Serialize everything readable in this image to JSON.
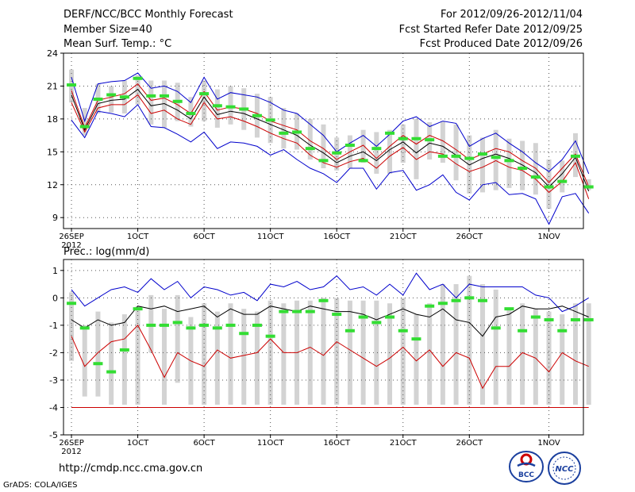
{
  "header": {
    "title": "DERF/NCC/BCC Monthly Forecast",
    "member": "Member Size=40",
    "variable": "Mean Surf. Temp.: °C",
    "period": "For 2012/09/26-2012/11/04",
    "started": "Fcst Started Refer Date 2012/09/25",
    "produced": "Fcst Produced Date 2012/09/26"
  },
  "footer": {
    "url": "http://cmdp.ncc.cma.gov.cn",
    "credit": "GrADS: COLA/IGES",
    "logo_bcc": "BCC",
    "logo_ncc": "NCC"
  },
  "colors": {
    "envelope": "#0000cc",
    "mean": "#000000",
    "spread": "#cc0000",
    "box": "#d3d3d3",
    "climatology": "#33dd33"
  },
  "chart_data": [
    {
      "type": "line",
      "title": "Mean Surf. Temp.: °C",
      "ylim": [
        8,
        24
      ],
      "yticks": [
        9,
        12,
        15,
        18,
        21,
        24
      ],
      "x": [
        0,
        1,
        2,
        3,
        4,
        5,
        6,
        7,
        8,
        9,
        10,
        11,
        12,
        13,
        14,
        15,
        16,
        17,
        18,
        19,
        20,
        21,
        22,
        23,
        24,
        25,
        26,
        27,
        28,
        29,
        30,
        31,
        32,
        33,
        34,
        35,
        36,
        37,
        38,
        39
      ],
      "xtick_labels": [
        {
          "day": 0,
          "label": "26SEP",
          "sub": "2012"
        },
        {
          "day": 5,
          "label": "1OCT",
          "sub": ""
        },
        {
          "day": 10,
          "label": "6OCT",
          "sub": ""
        },
        {
          "day": 15,
          "label": "11OCT",
          "sub": ""
        },
        {
          "day": 20,
          "label": "16OCT",
          "sub": ""
        },
        {
          "day": 25,
          "label": "21OCT",
          "sub": ""
        },
        {
          "day": 30,
          "label": "26OCT",
          "sub": ""
        },
        {
          "day": 36,
          "label": "1NOV",
          "sub": ""
        }
      ],
      "series": [
        {
          "name": "max",
          "values": [
            21.8,
            17.8,
            21.2,
            21.4,
            21.5,
            22.2,
            20.8,
            21.0,
            20.5,
            19.5,
            21.8,
            19.8,
            20.4,
            20.2,
            20.0,
            19.5,
            18.8,
            18.5,
            17.5,
            16.5,
            15.0,
            15.8,
            16.5,
            15.5,
            16.6,
            17.8,
            18.2,
            17.3,
            17.8,
            17.6,
            15.5,
            16.2,
            16.7,
            15.8,
            15.0,
            14.0,
            13.2,
            14.3,
            16.0,
            13.0
          ]
        },
        {
          "name": "upper",
          "values": [
            20.6,
            17.2,
            19.7,
            20.0,
            20.3,
            21.2,
            19.7,
            19.9,
            19.3,
            18.5,
            20.5,
            18.8,
            19.1,
            18.9,
            18.5,
            17.8,
            17.4,
            17.0,
            16.0,
            15.3,
            14.3,
            15.0,
            15.6,
            14.4,
            15.5,
            16.5,
            15.7,
            16.5,
            16.0,
            15.2,
            14.3,
            14.8,
            15.3,
            15.0,
            14.2,
            13.5,
            12.2,
            13.5,
            14.8,
            11.8
          ]
        },
        {
          "name": "mean",
          "values": [
            20.2,
            17.0,
            19.4,
            19.7,
            19.8,
            20.7,
            19.2,
            19.4,
            18.8,
            18.0,
            20.0,
            18.4,
            18.7,
            18.5,
            18.0,
            17.5,
            17.0,
            16.5,
            15.6,
            14.9,
            14.0,
            14.6,
            15.0,
            14.2,
            15.2,
            15.9,
            14.9,
            15.8,
            15.5,
            14.7,
            13.8,
            14.4,
            14.8,
            14.4,
            13.8,
            13.1,
            11.8,
            13.0,
            14.5,
            11.4
          ]
        },
        {
          "name": "lower",
          "values": [
            19.5,
            16.8,
            19.0,
            19.3,
            19.3,
            20.2,
            18.5,
            18.8,
            18.0,
            17.5,
            19.5,
            18.0,
            18.2,
            17.8,
            17.3,
            16.7,
            16.2,
            15.8,
            14.7,
            14.0,
            13.6,
            14.1,
            14.4,
            13.5,
            14.6,
            15.4,
            14.3,
            15.0,
            14.8,
            13.9,
            13.2,
            13.6,
            14.2,
            13.6,
            13.3,
            12.5,
            11.3,
            12.3,
            14.0,
            10.7
          ]
        },
        {
          "name": "min",
          "values": [
            17.9,
            16.3,
            18.7,
            18.5,
            18.2,
            19.3,
            17.3,
            17.2,
            16.6,
            15.9,
            16.8,
            15.3,
            15.9,
            15.8,
            15.5,
            14.7,
            15.2,
            14.3,
            13.5,
            13.0,
            12.2,
            13.5,
            13.5,
            11.6,
            13.1,
            13.3,
            11.5,
            12.0,
            12.9,
            11.3,
            10.6,
            12.0,
            12.2,
            11.1,
            11.2,
            10.7,
            8.4,
            10.9,
            11.2,
            9.4
          ]
        },
        {
          "name": "box_top",
          "values": [
            22.5,
            19.0,
            21.2,
            21.0,
            21.5,
            22.0,
            21.5,
            21.5,
            21.3,
            20.0,
            21.5,
            20.7,
            21.0,
            20.8,
            20.3,
            20.0,
            19.0,
            18.5,
            18.0,
            17.5,
            16.3,
            16.5,
            17.0,
            16.8,
            17.0,
            17.5,
            18.0,
            17.7,
            17.8,
            17.5,
            16.5,
            16.3,
            17.0,
            16.2,
            16.0,
            15.8,
            14.3,
            14.2,
            16.7,
            12.5
          ]
        },
        {
          "name": "box_bottom",
          "values": [
            19.5,
            16.5,
            18.5,
            18.6,
            18.5,
            19.3,
            17.5,
            17.2,
            17.8,
            17.3,
            17.8,
            17.2,
            17.5,
            17.0,
            16.3,
            15.8,
            15.3,
            15.2,
            14.3,
            13.5,
            13.3,
            13.5,
            14.0,
            13.0,
            13.0,
            14.0,
            12.5,
            14.3,
            14.0,
            12.4,
            11.2,
            11.3,
            11.5,
            11.7,
            11.5,
            11.1,
            9.8,
            11.3,
            12.7,
            11.5
          ]
        },
        {
          "name": "climatology",
          "values": [
            21.1,
            17.3,
            19.8,
            20.2,
            20.0,
            21.7,
            20.1,
            20.1,
            19.6,
            18.5,
            20.3,
            19.2,
            19.1,
            18.9,
            18.3,
            17.9,
            16.7,
            16.8,
            15.3,
            14.2,
            14.9,
            15.6,
            14.2,
            15.3,
            16.7,
            16.2,
            16.2,
            16.1,
            14.6,
            14.6,
            14.4,
            14.8,
            14.5,
            14.2,
            13.5,
            12.7,
            11.8,
            12.3,
            14.6,
            11.8
          ]
        }
      ]
    },
    {
      "type": "line",
      "title": "Prec.: log(mm/d)",
      "ylim": [
        -5,
        1.4
      ],
      "yticks": [
        -5,
        -4,
        -3,
        -2,
        -1,
        0,
        1
      ],
      "x": [
        0,
        1,
        2,
        3,
        4,
        5,
        6,
        7,
        8,
        9,
        10,
        11,
        12,
        13,
        14,
        15,
        16,
        17,
        18,
        19,
        20,
        21,
        22,
        23,
        24,
        25,
        26,
        27,
        28,
        29,
        30,
        31,
        32,
        33,
        34,
        35,
        36,
        37,
        38,
        39
      ],
      "xtick_labels": [
        {
          "day": 0,
          "label": "26SEP",
          "sub": "2012"
        },
        {
          "day": 5,
          "label": "1OCT",
          "sub": ""
        },
        {
          "day": 10,
          "label": "6OCT",
          "sub": ""
        },
        {
          "day": 15,
          "label": "11OCT",
          "sub": ""
        },
        {
          "day": 20,
          "label": "16OCT",
          "sub": ""
        },
        {
          "day": 25,
          "label": "21OCT",
          "sub": ""
        },
        {
          "day": 30,
          "label": "26OCT",
          "sub": ""
        },
        {
          "day": 36,
          "label": "1NOV",
          "sub": ""
        }
      ],
      "series": [
        {
          "name": "max",
          "values": [
            0.3,
            -0.3,
            0.0,
            0.3,
            0.4,
            0.2,
            0.7,
            0.3,
            0.6,
            0.0,
            0.4,
            0.3,
            0.1,
            0.2,
            -0.1,
            0.5,
            0.4,
            0.6,
            0.3,
            0.4,
            0.8,
            0.3,
            0.4,
            0.1,
            0.5,
            0.1,
            0.9,
            0.3,
            0.5,
            0.0,
            0.5,
            0.4,
            0.4,
            0.4,
            0.4,
            0.1,
            0.0,
            -0.5,
            -0.3,
            0.0
          ]
        },
        {
          "name": "mean",
          "values": [
            -0.8,
            -1.1,
            -0.8,
            -1.0,
            -0.9,
            -0.3,
            -0.4,
            -0.3,
            -0.5,
            -0.4,
            -0.3,
            -0.7,
            -0.4,
            -0.6,
            -0.6,
            -0.3,
            -0.4,
            -0.5,
            -0.3,
            -0.4,
            -0.5,
            -0.5,
            -0.6,
            -0.8,
            -0.6,
            -0.4,
            -0.6,
            -0.7,
            -0.4,
            -0.8,
            -0.9,
            -1.4,
            -0.7,
            -0.6,
            -0.3,
            -0.4,
            -0.4,
            -0.3,
            -0.5,
            -0.7
          ]
        },
        {
          "name": "spread_low",
          "values": [
            -1.4,
            -2.5,
            -2.0,
            -1.6,
            -1.5,
            -1.0,
            -1.9,
            -2.9,
            -2.0,
            -2.3,
            -2.5,
            -1.9,
            -2.2,
            -2.1,
            -2.0,
            -1.5,
            -2.0,
            -2.0,
            -1.8,
            -2.1,
            -1.6,
            -1.9,
            -2.2,
            -2.5,
            -2.2,
            -1.8,
            -2.3,
            -1.9,
            -2.5,
            -2.0,
            -2.2,
            -3.3,
            -2.5,
            -2.5,
            -2.0,
            -2.2,
            -2.7,
            -2.0,
            -2.3,
            -2.5
          ]
        },
        {
          "name": "floor",
          "values": [
            -4,
            -4,
            -4,
            -4,
            -4,
            -4,
            -4,
            -4,
            -4,
            -4,
            -4,
            -4,
            -4,
            -4,
            -4,
            -4,
            -4,
            -4,
            -4,
            -4,
            -4,
            -4,
            -4,
            -4,
            -4,
            -4,
            -4,
            -4,
            -4,
            -4,
            -4,
            -4,
            -4,
            -4,
            -4,
            -4,
            -4,
            -4,
            -4,
            -4
          ]
        },
        {
          "name": "box_top",
          "values": [
            0.2,
            -1.0,
            -0.5,
            -0.9,
            -0.6,
            -0.3,
            0.1,
            -0.4,
            0.1,
            -0.7,
            -0.2,
            -0.5,
            -0.2,
            -0.4,
            -0.5,
            -0.1,
            -0.2,
            -0.1,
            -0.1,
            0.0,
            0.0,
            -0.1,
            -0.1,
            -0.1,
            -0.2,
            0.0,
            -0.6,
            -0.2,
            0.5,
            0.5,
            0.8,
            0.5,
            0.3,
            -0.4,
            -0.2,
            -0.4,
            -0.5,
            -0.6,
            -0.2,
            -0.2
          ]
        },
        {
          "name": "box_bottom",
          "values": [
            -2.3,
            -3.6,
            -3.6,
            -3.9,
            -3.9,
            -3.9,
            -2.0,
            -3.9,
            -3.1,
            -3.9,
            -3.9,
            -3.9,
            -3.9,
            -3.9,
            -3.9,
            -3.9,
            -3.9,
            -3.9,
            -3.9,
            -3.9,
            -3.9,
            -3.9,
            -3.9,
            -3.9,
            -3.9,
            -3.9,
            -3.9,
            -3.9,
            -3.9,
            -3.9,
            -3.9,
            -3.9,
            -3.9,
            -3.9,
            -3.9,
            -3.9,
            -3.9,
            -3.9,
            -3.9,
            -3.9
          ]
        },
        {
          "name": "climatology",
          "values": [
            -0.2,
            -1.1,
            -2.4,
            -2.7,
            -1.9,
            -0.4,
            -1.0,
            -1.0,
            -0.9,
            -1.1,
            -1.0,
            -1.1,
            -1.0,
            -1.3,
            -1.0,
            -1.4,
            -0.5,
            -0.5,
            -0.5,
            -0.1,
            -0.6,
            -1.2,
            -0.7,
            -0.9,
            -0.7,
            -1.2,
            -1.5,
            -0.3,
            -0.2,
            -0.1,
            0.0,
            -0.1,
            -1.1,
            -0.4,
            -1.2,
            -0.7,
            -0.8,
            -1.2,
            -0.8,
            -0.8
          ]
        }
      ]
    }
  ]
}
